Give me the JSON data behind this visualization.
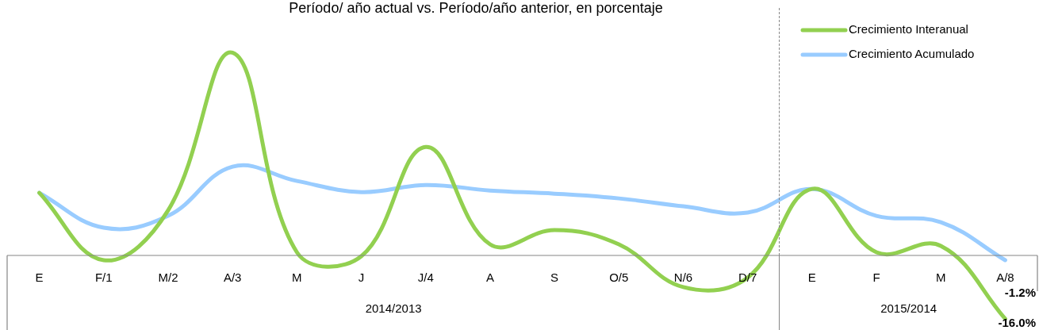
{
  "chart_data": {
    "type": "line",
    "title": "Período/ año actual vs. Período/año anterior, en porcentaje",
    "categories": [
      "E",
      "F/1",
      "M/2",
      "A/3",
      "M",
      "J",
      "J/4",
      "A",
      "S",
      "O/5",
      "N/6",
      "D/7",
      "E",
      "F",
      "M",
      "A/8"
    ],
    "series": [
      {
        "name": "Crecimiento Interanual",
        "color": "#92d050",
        "values": [
          15.8,
          -1.2,
          11.4,
          51.2,
          0.8,
          -0.2,
          27.4,
          2.8,
          6.4,
          2.8,
          -8,
          -5.6,
          16.8,
          0.8,
          2.4,
          -16.0
        ],
        "value_labels": [
          null,
          null,
          null,
          null,
          null,
          null,
          null,
          null,
          null,
          null,
          null,
          null,
          null,
          null,
          null,
          "-16.0%"
        ]
      },
      {
        "name": "Crecimiento Acumulado",
        "color": "#99ccff",
        "values": [
          15.8,
          7,
          10,
          22.4,
          18.8,
          16,
          17.8,
          16.4,
          15.6,
          14.4,
          12.4,
          10.8,
          16.8,
          10,
          8.4,
          -1.2
        ],
        "value_labels": [
          null,
          null,
          null,
          null,
          null,
          null,
          null,
          null,
          null,
          null,
          null,
          null,
          null,
          null,
          null,
          "-1.2%"
        ]
      }
    ],
    "tick_labels": "x",
    "legend": "top right",
    "marker": "none",
    "line_style": "solid",
    "annotations": [
      "2014/2013",
      "2015/2014"
    ]
  }
}
